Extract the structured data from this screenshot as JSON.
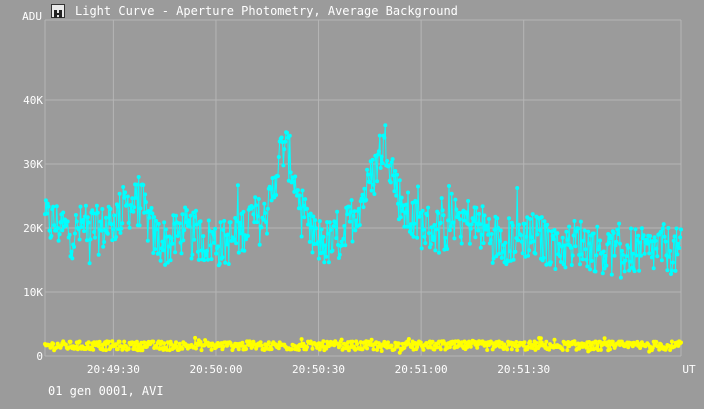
{
  "window": {
    "title": "Light Curve - Aperture Photometry, Average Background"
  },
  "footer": {
    "text": "01 gen 0001, AVI"
  },
  "colors": {
    "background": "#9b9b9b",
    "grid": "#b6b6b6",
    "target_series": "#00ffff",
    "background_series": "#ffff00",
    "text": "#ffffff"
  },
  "icons": {
    "app": "app-logo-icon"
  },
  "chart_data": {
    "type": "scatter",
    "title": "Light Curve - Aperture Photometry, Average Background",
    "ylabel": "ADU",
    "xlabel": "UT",
    "y_ticks": [
      {
        "value": 0,
        "label": "0"
      },
      {
        "value": 10000,
        "label": "10K"
      },
      {
        "value": 20000,
        "label": "20K"
      },
      {
        "value": 30000,
        "label": "30K"
      },
      {
        "value": 40000,
        "label": "40K"
      }
    ],
    "x_ticks": [
      {
        "value": 1770,
        "label": "20:49:30"
      },
      {
        "value": 1800,
        "label": "20:50:00"
      },
      {
        "value": 1830,
        "label": "20:50:30"
      },
      {
        "value": 1860,
        "label": "20:51:00"
      },
      {
        "value": 1890,
        "label": "20:51:30"
      }
    ],
    "xlim": [
      1750,
      1936
    ],
    "ylim": [
      0,
      52500
    ],
    "grid": true,
    "series": [
      {
        "color": "#00ffff",
        "x": [
          1750,
          1754,
          1758,
          1762,
          1766,
          1770,
          1774,
          1778,
          1782,
          1786,
          1790,
          1794,
          1798,
          1802,
          1806,
          1810,
          1814,
          1816,
          1818,
          1820,
          1822,
          1824,
          1826,
          1828,
          1830,
          1834,
          1838,
          1842,
          1846,
          1848,
          1850,
          1852,
          1854,
          1856,
          1858,
          1862,
          1866,
          1870,
          1874,
          1878,
          1882,
          1886,
          1890,
          1894,
          1898,
          1902,
          1906,
          1910,
          1914,
          1918,
          1922,
          1926,
          1930,
          1936
        ],
        "y": [
          21000,
          20500,
          19000,
          20500,
          19500,
          21000,
          23500,
          24000,
          18500,
          17500,
          19500,
          18500,
          18000,
          17500,
          18500,
          21500,
          21000,
          24000,
          30000,
          33000,
          30000,
          25000,
          20000,
          18500,
          18000,
          17500,
          19500,
          24000,
          28000,
          32000,
          33500,
          28000,
          24000,
          22000,
          21000,
          20000,
          19500,
          22000,
          21000,
          20000,
          18500,
          18000,
          19000,
          18500,
          17500,
          17000,
          18000,
          17000,
          16500,
          16000,
          16500,
          16000,
          17000,
          16000
        ],
        "scatter": 3800
      },
      {
        "color": "#ffff00",
        "x": [
          1750,
          1936
        ],
        "y": [
          1600,
          1600
        ],
        "scatter": 700
      }
    ]
  }
}
